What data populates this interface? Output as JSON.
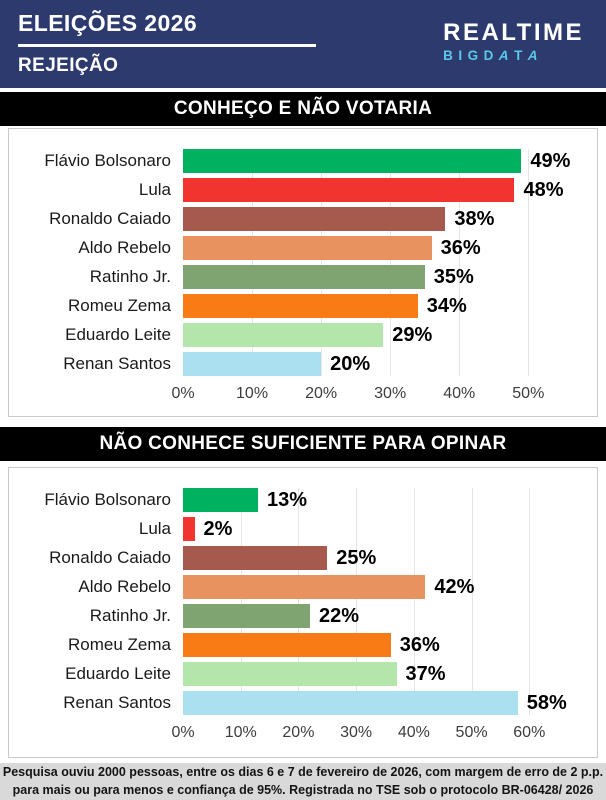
{
  "header": {
    "title": "ELEIÇÕES 2026",
    "subtitle": "REJEIÇÃO",
    "brand_top": "REALTIME",
    "brand_bottom": "BIGDATA"
  },
  "colors": {
    "header_bg": "#2d3a6e",
    "brand_accent": "#5bc8e8",
    "title_bar_bg": "#000000",
    "footer_bg": "#d9d9d9",
    "gridline": "#e4e4e4"
  },
  "chart_data": [
    {
      "type": "bar",
      "orientation": "horizontal",
      "title": "CONHEÇO E NÃO VOTARIA",
      "categories": [
        "Flávio Bolsonaro",
        "Lula",
        "Ronaldo Caiado",
        "Aldo Rebelo",
        "Ratinho Jr.",
        "Romeu Zema",
        "Eduardo Leite",
        "Renan Santos"
      ],
      "values": [
        49,
        48,
        38,
        36,
        35,
        34,
        29,
        20
      ],
      "value_labels": [
        "49%",
        "48%",
        "38%",
        "36%",
        "35%",
        "34%",
        "29%",
        "20%"
      ],
      "bar_colors": [
        "#00b15f",
        "#f13430",
        "#a55a4d",
        "#e8935f",
        "#7fa471",
        "#f97b16",
        "#b4e6ac",
        "#abe0f0"
      ],
      "unit": "%",
      "ticks": [
        0,
        10,
        20,
        30,
        40,
        50
      ],
      "tick_labels": [
        "0%",
        "10%",
        "20%",
        "30%",
        "40%",
        "50%"
      ],
      "xmax": 58.5,
      "grid": "vertical-on"
    },
    {
      "type": "bar",
      "orientation": "horizontal",
      "title": "NÃO CONHECE SUFICIENTE PARA OPINAR",
      "categories": [
        "Flávio Bolsonaro",
        "Lula",
        "Ronaldo Caiado",
        "Aldo Rebelo",
        "Ratinho Jr.",
        "Romeu Zema",
        "Eduardo Leite",
        "Renan Santos"
      ],
      "values": [
        13,
        2,
        25,
        42,
        22,
        36,
        37,
        58
      ],
      "value_labels": [
        "13%",
        "2%",
        "25%",
        "42%",
        "22%",
        "36%",
        "37%",
        "58%"
      ],
      "bar_colors": [
        "#00b15f",
        "#f13430",
        "#a55a4d",
        "#e8935f",
        "#7fa471",
        "#f97b16",
        "#b4e6ac",
        "#abe0f0"
      ],
      "unit": "%",
      "ticks": [
        0,
        10,
        20,
        30,
        40,
        50,
        60
      ],
      "tick_labels": [
        "0%",
        "10%",
        "20%",
        "30%",
        "40%",
        "50%",
        "60%"
      ],
      "xmax": 70,
      "grid": "vertical-on"
    }
  ],
  "footer": {
    "line1": "Pesquisa ouviu 2000 pessoas, entre os dias 6 e 7 de fevereiro de 2026, com margem de erro de 2 p.p.",
    "line2": "para mais ou para menos e confiança de 95%. Registrada no TSE sob o protocolo BR-06428/ 2026"
  }
}
